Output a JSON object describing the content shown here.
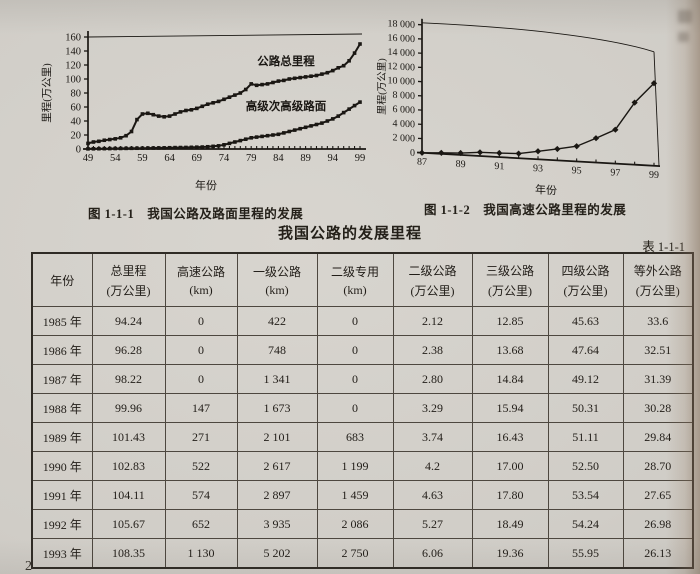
{
  "page": {
    "page_number": "2"
  },
  "figures": {
    "fig1": {
      "caption": "图 1-1-1　我国公路及路面里程的发展"
    },
    "fig2": {
      "caption": "图 1-1-2　我国高速公路里程的发展"
    }
  },
  "chart_data": [
    {
      "type": "line",
      "title": "图 1-1-1 我国公路及路面里程的发展",
      "xlabel": "年份",
      "ylabel": "里程(万公里)",
      "ylim": [
        0,
        160
      ],
      "ytick_step": 20,
      "ytick_labels": [
        "0",
        "20",
        "40",
        "60",
        "80",
        "100",
        "120",
        "140",
        "160"
      ],
      "xticks": [
        "49",
        "54",
        "59",
        "64",
        "69",
        "74",
        "79",
        "84",
        "89",
        "94",
        "99"
      ],
      "x_start_year": 1949,
      "x_end_year": 1999,
      "grid": false,
      "legend_position": "inline-annotations",
      "series": [
        {
          "name": "公路总里程",
          "values": [
            8,
            10,
            11,
            12.5,
            13.5,
            14.5,
            16,
            19,
            25,
            42,
            50,
            51,
            49,
            47,
            46,
            47,
            50,
            53,
            55,
            56,
            58,
            61,
            64,
            66,
            68,
            71,
            74,
            77,
            80,
            85,
            93,
            91,
            92,
            93,
            95,
            97,
            98,
            100,
            101,
            102,
            103,
            104,
            105,
            107,
            109,
            112,
            116,
            119,
            126,
            137,
            150
          ]
        },
        {
          "name": "高级次高级路面",
          "values": [
            0.2,
            0.3,
            0.4,
            0.5,
            0.6,
            0.7,
            0.8,
            0.9,
            1,
            1.1,
            1.2,
            1.3,
            1.4,
            1.5,
            1.6,
            1.8,
            2,
            2.1,
            2.2,
            2.4,
            2.6,
            2.8,
            3.2,
            3.8,
            4.5,
            6,
            8,
            10,
            12,
            14,
            16,
            17,
            18,
            19,
            20,
            21,
            23,
            25,
            27,
            29,
            31,
            33,
            35,
            37,
            40,
            43,
            47,
            52,
            57,
            62,
            67
          ]
        }
      ]
    },
    {
      "type": "line",
      "title": "图 1-1-2 我国高速公路里程的发展",
      "xlabel": "年份",
      "ylabel": "里程(万公里)",
      "ylim": [
        0,
        18000
      ],
      "ytick_step": 2000,
      "ytick_labels": [
        "0",
        "2 000",
        "4 000",
        "6 000",
        "8 000",
        "10 000",
        "12 000",
        "14 000",
        "16 000",
        "18 000"
      ],
      "xticks": [
        "87",
        "89",
        "91",
        "93",
        "95",
        "97",
        "99"
      ],
      "x_start_year": 1987,
      "x_end_year": 1999,
      "grid": false,
      "legend_position": "none",
      "series": [
        {
          "name": "高速公路",
          "values": [
            0,
            147,
            271,
            522,
            574,
            652,
            1130,
            1603,
            2141,
            3422,
            4771,
            8733,
            11605
          ]
        }
      ]
    }
  ],
  "table": {
    "title": "我国公路的发展里程",
    "tag": "表 1-1-1",
    "columns": [
      {
        "label": "年份",
        "unit": ""
      },
      {
        "label": "总里程",
        "unit": "(万公里)"
      },
      {
        "label": "高速公路",
        "unit": "(km)"
      },
      {
        "label": "一级公路",
        "unit": "(km)"
      },
      {
        "label": "二级专用",
        "unit": "(km)"
      },
      {
        "label": "二级公路",
        "unit": "(万公里)"
      },
      {
        "label": "三级公路",
        "unit": "(万公里)"
      },
      {
        "label": "四级公路",
        "unit": "(万公里)"
      },
      {
        "label": "等外公路",
        "unit": "(万公里)"
      }
    ],
    "rows": [
      {
        "year": "1985 年",
        "values": [
          "94.24",
          "0",
          "422",
          "0",
          "2.12",
          "12.85",
          "45.63",
          "33.6"
        ]
      },
      {
        "year": "1986 年",
        "values": [
          "96.28",
          "0",
          "748",
          "0",
          "2.38",
          "13.68",
          "47.64",
          "32.51"
        ]
      },
      {
        "year": "1987 年",
        "values": [
          "98.22",
          "0",
          "1 341",
          "0",
          "2.80",
          "14.84",
          "49.12",
          "31.39"
        ]
      },
      {
        "year": "1988 年",
        "values": [
          "99.96",
          "147",
          "1 673",
          "0",
          "3.29",
          "15.94",
          "50.31",
          "30.28"
        ]
      },
      {
        "year": "1989 年",
        "values": [
          "101.43",
          "271",
          "2 101",
          "683",
          "3.74",
          "16.43",
          "51.11",
          "29.84"
        ]
      },
      {
        "year": "1990 年",
        "values": [
          "102.83",
          "522",
          "2 617",
          "1 199",
          "4.2",
          "17.00",
          "52.50",
          "28.70"
        ]
      },
      {
        "year": "1991 年",
        "values": [
          "104.11",
          "574",
          "2 897",
          "1 459",
          "4.63",
          "17.80",
          "53.54",
          "27.65"
        ]
      },
      {
        "year": "1992 年",
        "values": [
          "105.67",
          "652",
          "3 935",
          "2 086",
          "5.27",
          "18.49",
          "54.24",
          "26.98"
        ]
      },
      {
        "year": "1993 年",
        "values": [
          "108.35",
          "1 130",
          "5 202",
          "2 750",
          "6.06",
          "19.36",
          "55.95",
          "26.13"
        ]
      }
    ]
  }
}
